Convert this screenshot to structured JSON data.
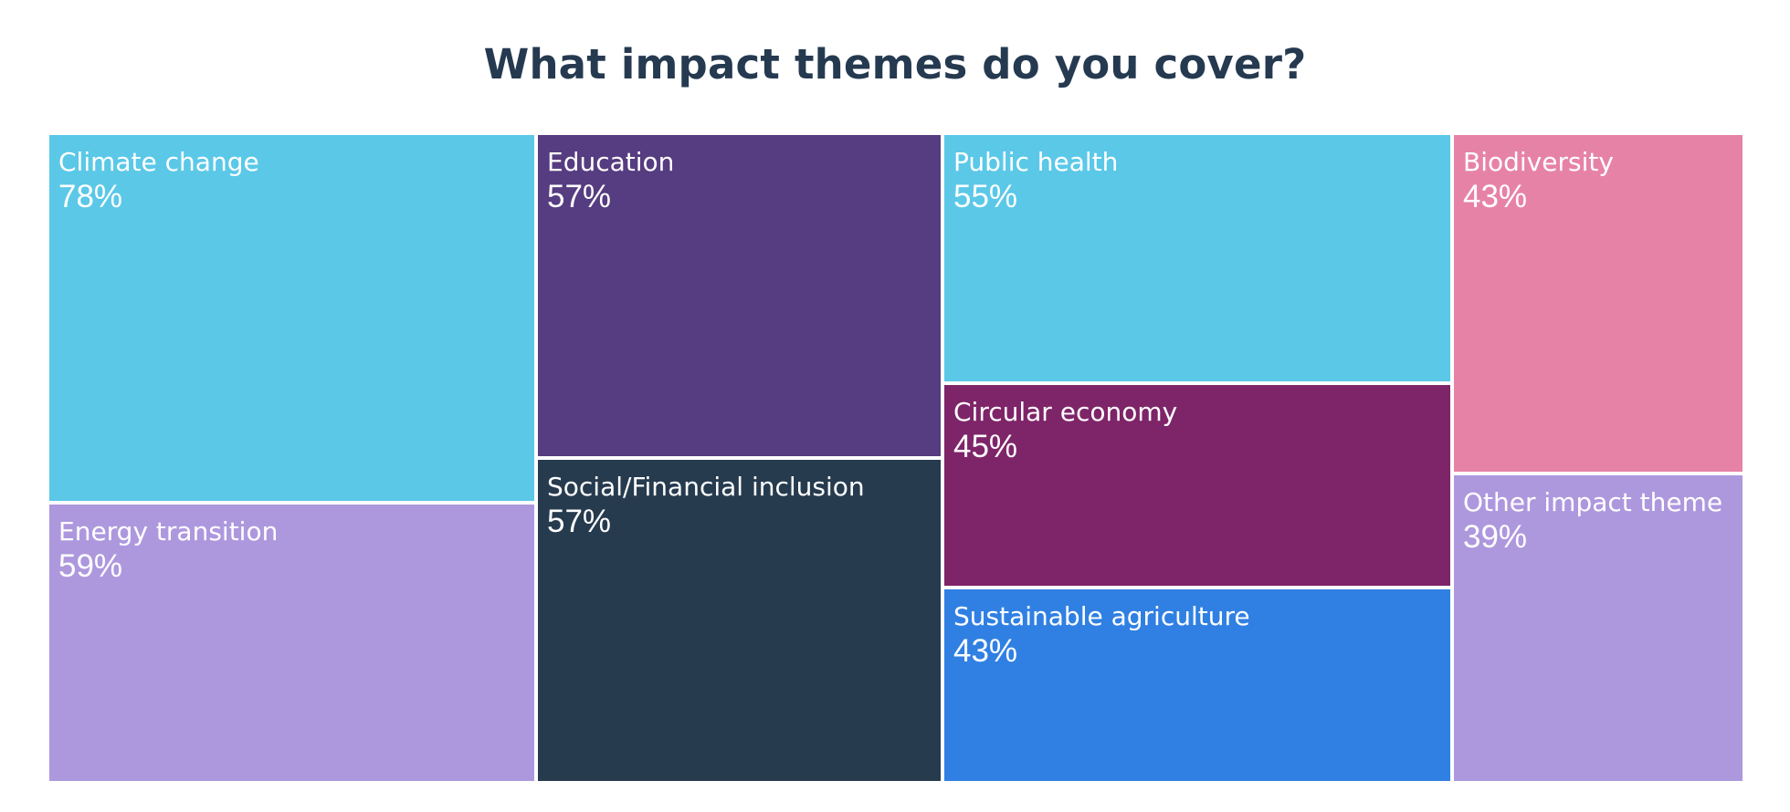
{
  "chart_data": {
    "type": "treemap",
    "title": "What impact themes do you cover?",
    "items": [
      {
        "label": "Climate change",
        "value": 78,
        "display": "78%",
        "color": "#5bc8e8"
      },
      {
        "label": "Energy transition",
        "value": 59,
        "display": "59%",
        "color": "#ad98de"
      },
      {
        "label": "Education",
        "value": 57,
        "display": "57%",
        "color": "#563c80"
      },
      {
        "label": "Social/Financial inclusion",
        "value": 57,
        "display": "57%",
        "color": "#273b4f"
      },
      {
        "label": "Public health",
        "value": 55,
        "display": "55%",
        "color": "#5bc8e8"
      },
      {
        "label": "Circular economy",
        "value": 45,
        "display": "45%",
        "color": "#7e2569"
      },
      {
        "label": "Sustainable agriculture",
        "value": 43,
        "display": "43%",
        "color": "#3080e3"
      },
      {
        "label": "Biodiversity",
        "value": 43,
        "display": "43%",
        "color": "#e782a7"
      },
      {
        "label": "Other impact theme",
        "value": 39,
        "display": "39%",
        "color": "#ad98de"
      }
    ]
  }
}
